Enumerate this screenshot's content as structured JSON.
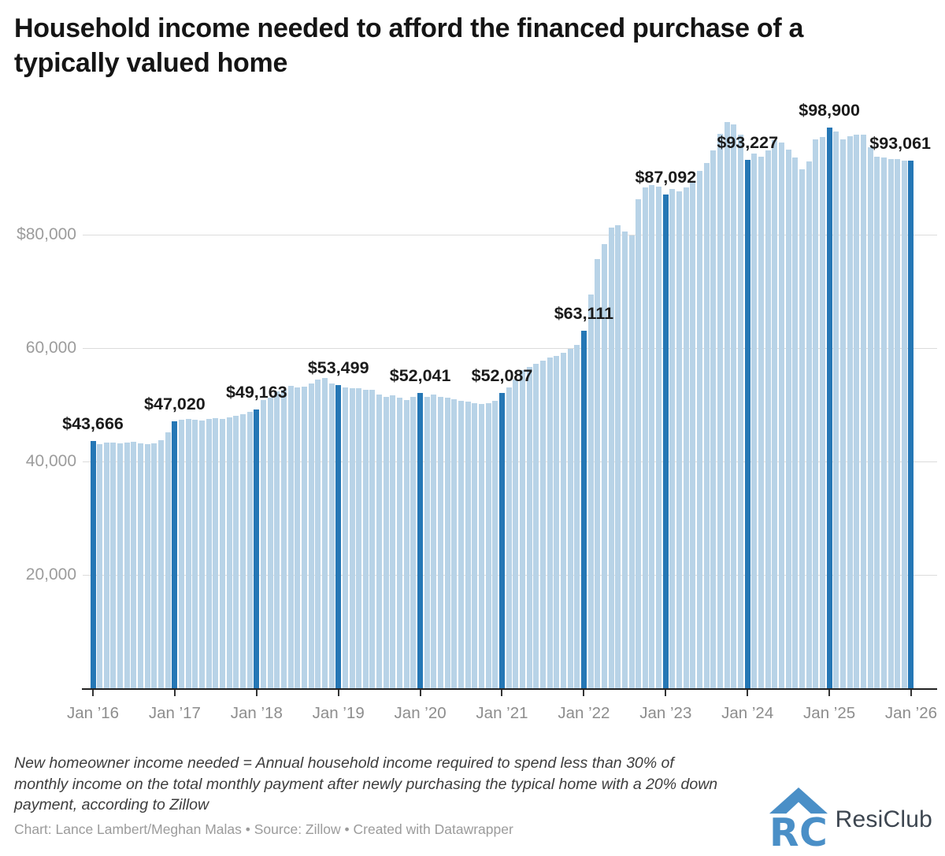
{
  "title_lines": [
    "Household income needed to afford the financed purchase of a",
    "typically valued home"
  ],
  "chart_data": {
    "type": "bar",
    "title": "Household income needed to afford the financed purchase of a typically valued home",
    "x_start": "Jan 2016",
    "x_end": "Jan 2026",
    "x_interval": "month",
    "ylim": [
      0,
      102000
    ],
    "grid": "horizontal",
    "legend": "none",
    "y_ticks": [
      {
        "value": 80000,
        "label": "$80,000"
      },
      {
        "value": 60000,
        "label": "60,000"
      },
      {
        "value": 40000,
        "label": "40,000"
      },
      {
        "value": 20000,
        "label": "20,000"
      }
    ],
    "x_ticks": [
      "Jan ’16",
      "Jan ’17",
      "Jan ’18",
      "Jan ’19",
      "Jan ’20",
      "Jan ’21",
      "Jan ’22",
      "Jan ’23",
      "Jan ’24",
      "Jan ’25",
      "Jan ’26"
    ],
    "values": [
      43666,
      43100,
      43300,
      43400,
      43250,
      43400,
      43500,
      43250,
      43050,
      43250,
      43700,
      45100,
      47020,
      47300,
      47500,
      47300,
      47200,
      47450,
      47700,
      47500,
      47800,
      48100,
      48300,
      48700,
      49163,
      50900,
      51200,
      52400,
      52700,
      53300,
      53100,
      53200,
      53700,
      54500,
      54700,
      53800,
      53499,
      53100,
      52900,
      52900,
      52600,
      52600,
      51800,
      51450,
      51600,
      51200,
      50850,
      51450,
      52041,
      51450,
      51800,
      51450,
      51200,
      51000,
      50750,
      50500,
      50300,
      50100,
      50300,
      50750,
      52087,
      53100,
      54500,
      56100,
      56700,
      57200,
      57800,
      58300,
      58600,
      59100,
      59800,
      60500,
      63111,
      69400,
      75700,
      78400,
      81300,
      81600,
      80500,
      79900,
      86200,
      88300,
      88700,
      88500,
      87092,
      88100,
      87600,
      88400,
      89200,
      91300,
      92700,
      94900,
      97800,
      99800,
      99400,
      97600,
      93227,
      94300,
      93800,
      94800,
      96600,
      96300,
      95000,
      93600,
      91500,
      92900,
      96800,
      97200,
      98900,
      98200,
      96800,
      97300,
      97600,
      97600,
      95400,
      93800,
      93600,
      93400,
      93300,
      93100,
      93061
    ],
    "highlight_every_nth": 12,
    "value_labels": [
      "$43,666",
      "$47,020",
      "$49,163",
      "$53,499",
      "$52,041",
      "$52,087",
      "$63,111",
      "$87,092",
      "$93,227",
      "$98,900",
      "$93,061"
    ],
    "colors": {
      "bar_light": "#b8d3e7",
      "bar_highlight": "#2577b5",
      "gridline": "#dcdcdc",
      "axis_text": "#9c9c9c",
      "value_label_text": "#1b1b1b"
    }
  },
  "footnote_lines": [
    "New homeowner income needed = Annual household income required to spend less than 30% of",
    "monthly income on the total monthly payment after newly purchasing the typical home with a 20% down",
    "payment, according to Zillow"
  ],
  "credit": "Chart: Lance Lambert/Meghan Malas • Source: Zillow • Created with Datawrapper",
  "logo": {
    "text": "ResiClub"
  }
}
